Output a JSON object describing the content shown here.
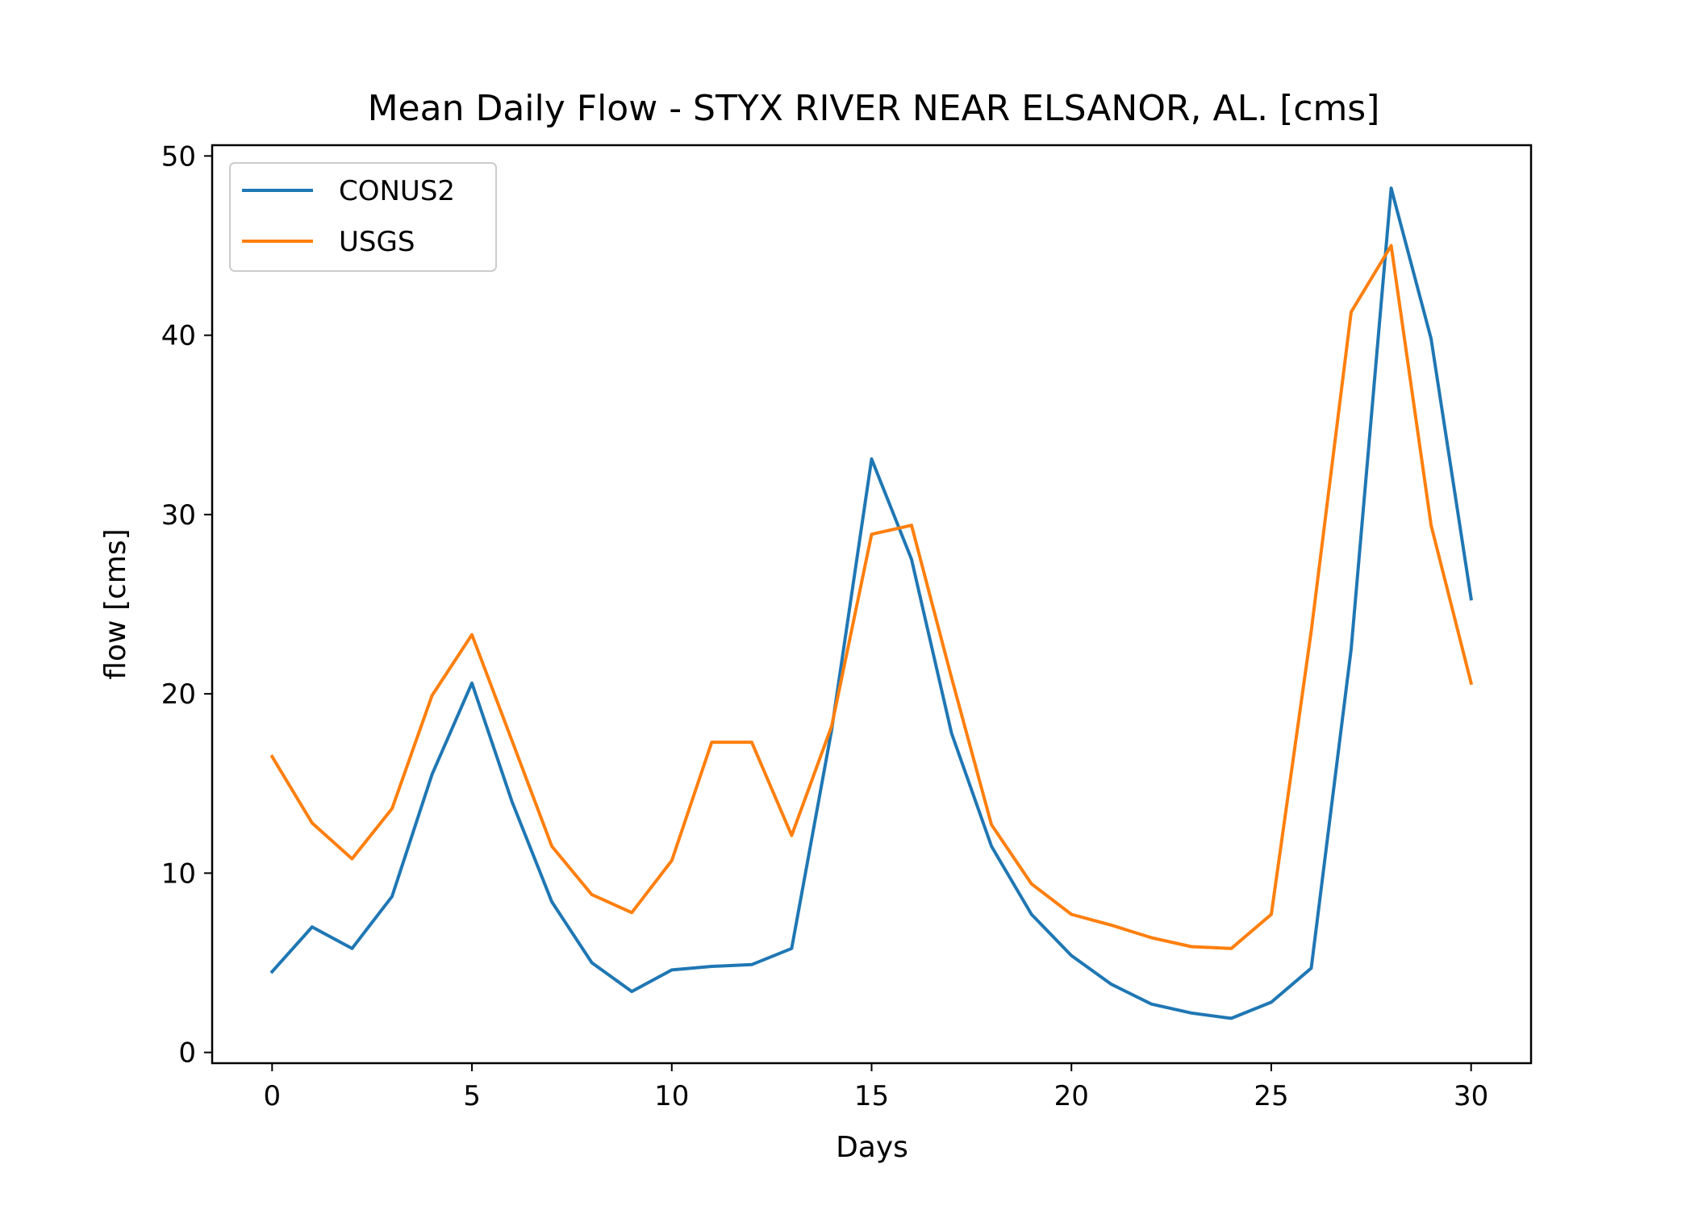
{
  "chart_data": {
    "type": "line",
    "title": "Mean Daily Flow - STYX RIVER NEAR ELSANOR, AL. [cms]",
    "xlabel": "Days",
    "ylabel": "flow [cms]",
    "xlim": [
      -1.5,
      31.5
    ],
    "ylim": [
      -0.6,
      50.6
    ],
    "xticks": [
      0,
      5,
      10,
      15,
      20,
      25,
      30
    ],
    "yticks": [
      0,
      10,
      20,
      30,
      40,
      50
    ],
    "grid": false,
    "legend_position": "upper-left",
    "x": [
      0,
      1,
      2,
      3,
      4,
      5,
      6,
      7,
      8,
      9,
      10,
      11,
      12,
      13,
      14,
      15,
      16,
      17,
      18,
      19,
      20,
      21,
      22,
      23,
      24,
      25,
      26,
      27,
      28,
      29,
      30
    ],
    "series": [
      {
        "name": "CONUS2",
        "color": "#1f77b4",
        "values": [
          4.5,
          7.0,
          5.8,
          8.7,
          15.5,
          20.6,
          14.0,
          8.4,
          5.0,
          3.4,
          4.6,
          4.8,
          4.9,
          5.8,
          18.0,
          33.1,
          27.5,
          17.8,
          11.5,
          7.7,
          5.4,
          3.8,
          2.7,
          2.2,
          1.9,
          2.8,
          4.7,
          22.5,
          48.2,
          39.8,
          25.3
        ]
      },
      {
        "name": "USGS",
        "color": "#ff7f0e",
        "values": [
          16.5,
          12.8,
          10.8,
          13.6,
          19.9,
          23.3,
          17.4,
          11.5,
          8.8,
          7.8,
          10.7,
          17.3,
          17.3,
          12.1,
          18.2,
          28.9,
          29.4,
          20.9,
          12.7,
          9.4,
          7.7,
          7.1,
          6.4,
          5.9,
          5.8,
          7.7,
          23.5,
          41.3,
          45.0,
          29.4,
          20.6
        ]
      }
    ]
  }
}
